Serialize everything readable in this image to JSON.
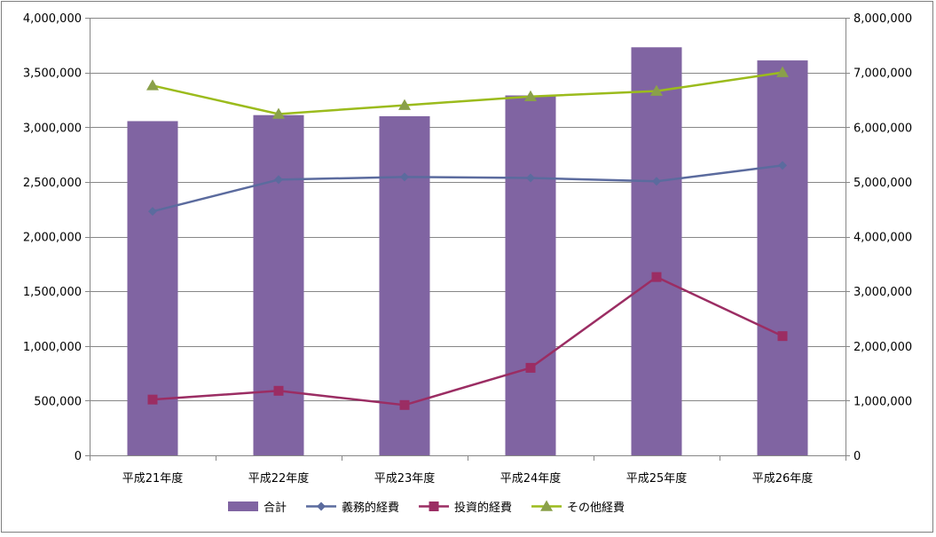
{
  "chart_data": {
    "type": "bar",
    "title": "",
    "xlabel": "",
    "ylabel": "",
    "categories": [
      "平成21年度",
      "平成22年度",
      "平成23年度",
      "平成24年度",
      "平成25年度",
      "平成26年度"
    ],
    "primary_axis": {
      "ylim": [
        0,
        4000000
      ],
      "ticks": [
        0,
        500000,
        1000000,
        1500000,
        2000000,
        2500000,
        3000000,
        3500000,
        4000000
      ],
      "tick_labels": [
        "0",
        "500,000",
        "1,000,000",
        "1,500,000",
        "2,000,000",
        "2,500,000",
        "3,000,000",
        "3,500,000",
        "4,000,000"
      ]
    },
    "secondary_axis": {
      "ylim": [
        0,
        8000000
      ],
      "ticks": [
        0,
        1000000,
        2000000,
        3000000,
        4000000,
        5000000,
        6000000,
        7000000,
        8000000
      ],
      "tick_labels": [
        "0",
        "1,000,000",
        "2,000,000",
        "3,000,000",
        "4,000,000",
        "5,000,000",
        "6,000,000",
        "7,000,000",
        "8,000,000"
      ]
    },
    "grid": true,
    "legend_position": "bottom",
    "series": [
      {
        "name": "合計",
        "kind": "bar",
        "axis": "secondary",
        "color": "#8064a2",
        "values": [
          6110000,
          6220000,
          6200000,
          6580000,
          7460000,
          7220000
        ]
      },
      {
        "name": "義務的経費",
        "kind": "line",
        "axis": "primary",
        "color": "#5b6b9e",
        "marker": "diamond",
        "values": [
          2230000,
          2520000,
          2545000,
          2535000,
          2505000,
          2650000
        ]
      },
      {
        "name": "投資的経費",
        "kind": "line",
        "axis": "primary",
        "color": "#9b2d63",
        "marker": "square",
        "values": [
          510000,
          590000,
          460000,
          800000,
          1630000,
          1090000
        ]
      },
      {
        "name": "その他経費",
        "kind": "line",
        "axis": "primary",
        "color": "#9bbb1c",
        "marker_color": "#8aa04a",
        "marker": "triangle",
        "values": [
          3380000,
          3120000,
          3200000,
          3280000,
          3330000,
          3500000
        ]
      }
    ]
  }
}
